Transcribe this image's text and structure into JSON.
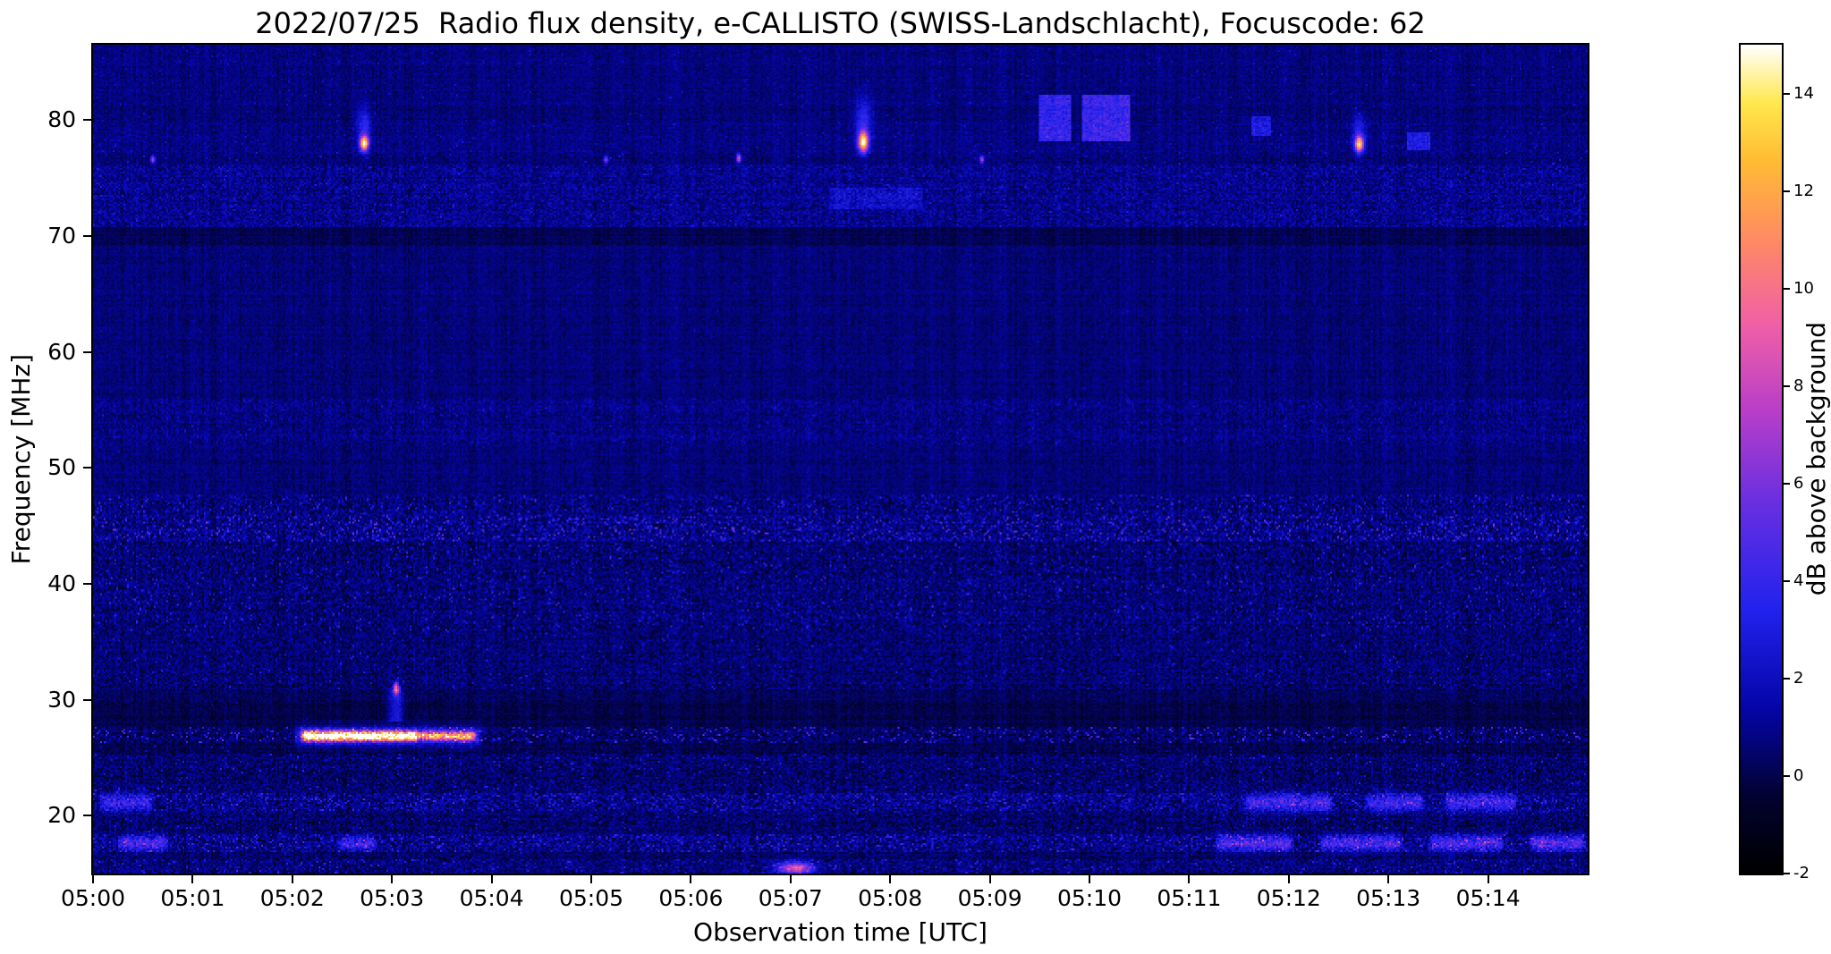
{
  "chart_data": {
    "type": "heatmap",
    "title": "2022/07/25  Radio flux density, e-CALLISTO (SWISS-Landschlacht), Focuscode: 62",
    "date": "2022/07/25",
    "station": "SWISS-Landschlacht",
    "focuscode": "62",
    "xlabel": "Observation time [UTC]",
    "ylabel": "Frequency [MHz]",
    "colorbar_label": "dB above background",
    "x_tick_labels": [
      "05:00",
      "05:01",
      "05:02",
      "05:03",
      "05:04",
      "05:05",
      "05:06",
      "05:07",
      "05:08",
      "05:09",
      "05:10",
      "05:11",
      "05:12",
      "05:13",
      "05:14"
    ],
    "x_unit": "minutes after 05:00 UTC",
    "x_range_min": [
      0,
      15
    ],
    "y_ticks": [
      20,
      30,
      40,
      50,
      60,
      70,
      80
    ],
    "y_range_mhz": [
      15,
      86.5
    ],
    "value_range_db": [
      -2,
      15
    ],
    "colorbar_ticks": [
      -2,
      0,
      2,
      4,
      6,
      8,
      10,
      12,
      14
    ],
    "grid": false,
    "colormap": [
      {
        "pos": 0.0,
        "color": "#000000"
      },
      {
        "pos": 0.09,
        "color": "#02022e"
      },
      {
        "pos": 0.2,
        "color": "#0505a8"
      },
      {
        "pos": 0.32,
        "color": "#2222ee"
      },
      {
        "pos": 0.45,
        "color": "#6a2fe0"
      },
      {
        "pos": 0.56,
        "color": "#b93ec8"
      },
      {
        "pos": 0.66,
        "color": "#ef5fa7"
      },
      {
        "pos": 0.76,
        "color": "#ff8866"
      },
      {
        "pos": 0.86,
        "color": "#ffbb33"
      },
      {
        "pos": 0.93,
        "color": "#ffe84d"
      },
      {
        "pos": 1.0,
        "color": "#ffffff"
      }
    ],
    "background_bands": [
      {
        "f0": 84.5,
        "f1": 86.6,
        "base": 0.75,
        "noise": 0.55,
        "sp": 0.03,
        "spAmp": 1.3
      },
      {
        "f0": 80.0,
        "f1": 84.5,
        "base": 0.7,
        "noise": 0.55,
        "sp": 0.03,
        "spAmp": 1.4
      },
      {
        "f0": 77.3,
        "f1": 80.0,
        "base": 0.8,
        "noise": 0.6,
        "sp": 0.04,
        "spAmp": 1.5
      },
      {
        "f0": 76.1,
        "f1": 77.3,
        "base": 0.7,
        "noise": 0.65,
        "sp": 0.02,
        "spAmp": 2.2
      },
      {
        "f0": 70.8,
        "f1": 76.1,
        "base": 1.0,
        "noise": 0.95,
        "sp": 0.07,
        "spAmp": 1.6
      },
      {
        "f0": 69.3,
        "f1": 70.8,
        "base": 0.15,
        "noise": 0.4,
        "sp": 0.0,
        "spAmp": 0.0
      },
      {
        "f0": 56.0,
        "f1": 69.3,
        "base": 0.65,
        "noise": 0.55,
        "sp": 0.02,
        "spAmp": 1.0
      },
      {
        "f0": 52.0,
        "f1": 56.0,
        "base": 0.8,
        "noise": 0.8,
        "sp": 0.05,
        "spAmp": 1.4
      },
      {
        "f0": 47.6,
        "f1": 52.0,
        "base": 0.65,
        "noise": 0.6,
        "sp": 0.02,
        "spAmp": 1.0
      },
      {
        "f0": 45.8,
        "f1": 47.6,
        "base": 0.7,
        "noise": 1.1,
        "sp": 0.08,
        "spAmp": 3.5
      },
      {
        "f0": 43.6,
        "f1": 45.8,
        "base": 0.85,
        "noise": 1.2,
        "sp": 0.15,
        "spAmp": 4.5
      },
      {
        "f0": 36.0,
        "f1": 43.6,
        "base": 0.6,
        "noise": 1.05,
        "sp": 0.06,
        "spAmp": 3.2
      },
      {
        "f0": 30.8,
        "f1": 36.0,
        "base": 0.55,
        "noise": 0.95,
        "sp": 0.04,
        "spAmp": 2.4
      },
      {
        "f0": 29.8,
        "f1": 30.8,
        "base": 0.3,
        "noise": 0.6,
        "sp": 0.01,
        "spAmp": 1.5
      },
      {
        "f0": 27.6,
        "f1": 29.8,
        "base": 0.0,
        "noise": 0.45,
        "sp": 0.01,
        "spAmp": 1.5
      },
      {
        "f0": 26.2,
        "f1": 27.6,
        "base": 0.4,
        "noise": 1.0,
        "sp": 0.1,
        "spAmp": 5.0
      },
      {
        "f0": 25.4,
        "f1": 26.2,
        "base": 0.1,
        "noise": 0.6,
        "sp": 0.02,
        "spAmp": 2.0
      },
      {
        "f0": 21.9,
        "f1": 25.4,
        "base": 0.5,
        "noise": 1.0,
        "sp": 0.05,
        "spAmp": 2.8
      },
      {
        "f0": 20.4,
        "f1": 21.9,
        "base": 0.9,
        "noise": 1.3,
        "sp": 0.12,
        "spAmp": 3.2
      },
      {
        "f0": 18.4,
        "f1": 20.4,
        "base": 0.5,
        "noise": 1.0,
        "sp": 0.04,
        "spAmp": 2.4
      },
      {
        "f0": 16.9,
        "f1": 18.4,
        "base": 0.9,
        "noise": 1.3,
        "sp": 0.12,
        "spAmp": 3.6
      },
      {
        "f0": 16.2,
        "f1": 16.9,
        "base": 0.3,
        "noise": 0.8,
        "sp": 0.02,
        "spAmp": 2.0
      },
      {
        "f0": 14.9,
        "f1": 16.2,
        "base": 0.7,
        "noise": 1.1,
        "sp": 0.08,
        "spAmp": 3.0
      }
    ],
    "events": [
      {
        "type": "dot",
        "t": 2.72,
        "f": 78.0,
        "st": 0.03,
        "sf": 0.45,
        "amp": 13.5
      },
      {
        "type": "dot",
        "t": 2.72,
        "f": 79.6,
        "st": 0.05,
        "sf": 1.1,
        "amp": 3.0
      },
      {
        "type": "dot",
        "t": 7.73,
        "f": 78.1,
        "st": 0.035,
        "sf": 0.6,
        "amp": 13.5
      },
      {
        "type": "dot",
        "t": 7.73,
        "f": 80.0,
        "st": 0.06,
        "sf": 1.4,
        "amp": 3.2
      },
      {
        "type": "dot",
        "t": 12.71,
        "f": 77.9,
        "st": 0.03,
        "sf": 0.45,
        "amp": 12.5
      },
      {
        "type": "dot",
        "t": 12.71,
        "f": 79.0,
        "st": 0.05,
        "sf": 1.0,
        "amp": 2.6
      },
      {
        "type": "dot",
        "t": 0.6,
        "f": 76.6,
        "st": 0.015,
        "sf": 0.22,
        "amp": 7.0
      },
      {
        "type": "dot",
        "t": 5.15,
        "f": 76.6,
        "st": 0.015,
        "sf": 0.22,
        "amp": 6.5
      },
      {
        "type": "dot",
        "t": 6.48,
        "f": 76.7,
        "st": 0.015,
        "sf": 0.25,
        "amp": 9.0
      },
      {
        "type": "dot",
        "t": 8.92,
        "f": 76.6,
        "st": 0.015,
        "sf": 0.22,
        "amp": 7.5
      },
      {
        "type": "dot",
        "t": 3.04,
        "f": 31.0,
        "st": 0.02,
        "sf": 0.35,
        "amp": 9.5
      },
      {
        "type": "vline",
        "t": 3.04,
        "f0": 28.4,
        "f1": 30.8,
        "w": 0.05,
        "amp": 2.8
      },
      {
        "type": "hstreak",
        "t0": 2.08,
        "t1": 3.28,
        "f": 26.85,
        "sf": 0.3,
        "amp": 14.0
      },
      {
        "type": "hstreak",
        "t0": 3.25,
        "t1": 3.85,
        "f": 26.85,
        "sf": 0.26,
        "amp": 9.5
      },
      {
        "type": "hstreak",
        "t0": 2.0,
        "t1": 3.9,
        "f": 26.85,
        "sf": 0.6,
        "amp": 3.0
      },
      {
        "type": "patch",
        "t0": 9.5,
        "t1": 9.8,
        "f0": 78.3,
        "f1": 82.2,
        "amp": 3.2
      },
      {
        "type": "patch",
        "t0": 9.93,
        "t1": 10.38,
        "f0": 78.3,
        "f1": 82.2,
        "amp": 3.4
      },
      {
        "type": "patch",
        "t0": 11.62,
        "t1": 11.8,
        "f0": 78.8,
        "f1": 80.3,
        "amp": 2.2
      },
      {
        "type": "patch",
        "t0": 13.18,
        "t1": 13.4,
        "f0": 77.5,
        "f1": 79.0,
        "amp": 2.2
      },
      {
        "type": "patch",
        "t0": 7.4,
        "t1": 8.3,
        "f0": 72.5,
        "f1": 74.2,
        "amp": 1.2
      },
      {
        "type": "dot",
        "t": 7.05,
        "f": 15.45,
        "st": 0.12,
        "sf": 0.38,
        "amp": 8.5
      },
      {
        "type": "hstreak",
        "t0": 0.05,
        "t1": 0.6,
        "f": 21.1,
        "sf": 0.5,
        "amp": 3.0
      },
      {
        "type": "hstreak",
        "t0": 11.55,
        "t1": 12.45,
        "f": 21.1,
        "sf": 0.5,
        "amp": 3.6
      },
      {
        "type": "hstreak",
        "t0": 12.75,
        "t1": 13.35,
        "f": 21.1,
        "sf": 0.5,
        "amp": 3.4
      },
      {
        "type": "hstreak",
        "t0": 13.55,
        "t1": 14.3,
        "f": 21.1,
        "sf": 0.5,
        "amp": 3.4
      },
      {
        "type": "hstreak",
        "t0": 0.25,
        "t1": 0.75,
        "f": 17.6,
        "sf": 0.45,
        "amp": 3.8
      },
      {
        "type": "hstreak",
        "t0": 2.45,
        "t1": 2.85,
        "f": 17.6,
        "sf": 0.4,
        "amp": 3.2
      },
      {
        "type": "hstreak",
        "t0": 11.25,
        "t1": 12.05,
        "f": 17.6,
        "sf": 0.45,
        "amp": 4.0
      },
      {
        "type": "hstreak",
        "t0": 12.3,
        "t1": 13.15,
        "f": 17.6,
        "sf": 0.45,
        "amp": 3.8
      },
      {
        "type": "hstreak",
        "t0": 13.4,
        "t1": 14.15,
        "f": 17.6,
        "sf": 0.45,
        "amp": 3.8
      },
      {
        "type": "hstreak",
        "t0": 14.4,
        "t1": 14.98,
        "f": 17.6,
        "sf": 0.45,
        "amp": 3.8
      }
    ]
  }
}
